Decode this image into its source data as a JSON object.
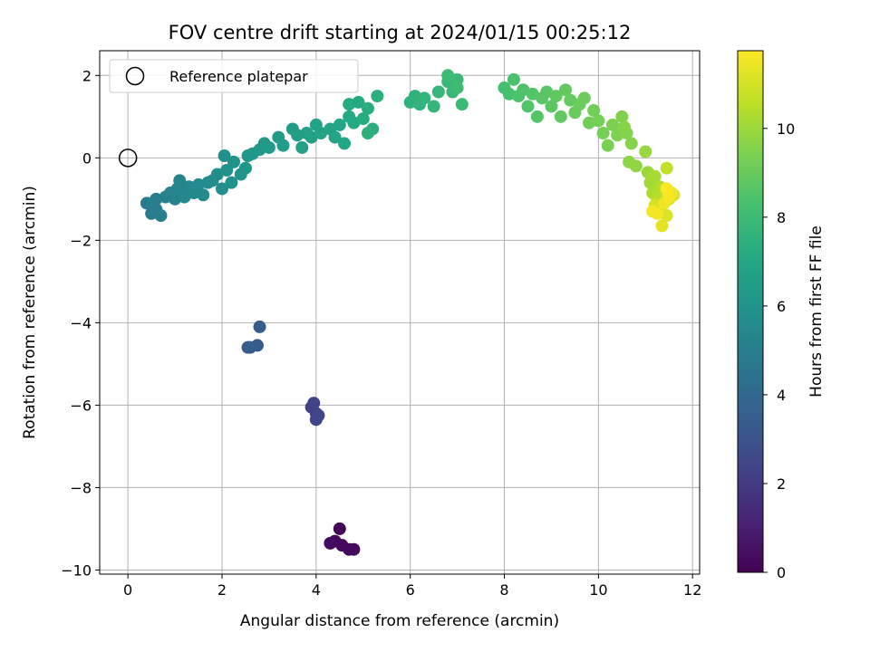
{
  "chart_data": {
    "type": "scatter",
    "title": "FOV centre drift starting at 2024/01/15 00:25:12",
    "xlabel": "Angular distance from reference (arcmin)",
    "ylabel": "Rotation from reference (arcmin)",
    "xlim": [
      -0.6,
      12.15
    ],
    "ylim": [
      -10.1,
      2.6
    ],
    "xticks": [
      0,
      2,
      4,
      6,
      8,
      10,
      12
    ],
    "yticks": [
      -10,
      -8,
      -6,
      -4,
      -2,
      0,
      2
    ],
    "xtick_labels": [
      "0",
      "2",
      "4",
      "6",
      "8",
      "10",
      "12"
    ],
    "ytick_labels": [
      "−10",
      "−8",
      "−6",
      "−4",
      "−2",
      "0",
      "2"
    ],
    "grid": true,
    "legend": {
      "position": "top-left",
      "entries": [
        "Reference platepar"
      ]
    },
    "reference_point": {
      "x": 0,
      "y": 0,
      "marker": "open-circle",
      "color": "#000000"
    },
    "colorbar": {
      "label": "Hours from first FF file",
      "colormap": "viridis",
      "range": [
        0,
        11.75
      ],
      "ticks": [
        0,
        2,
        4,
        6,
        8,
        10
      ],
      "tick_labels": [
        "0",
        "2",
        "4",
        "6",
        "8",
        "10"
      ]
    },
    "points": [
      [
        4.5,
        -9.0,
        0.1
      ],
      [
        4.4,
        -9.3,
        0.15
      ],
      [
        4.55,
        -9.4,
        0.2
      ],
      [
        4.7,
        -9.5,
        0.25
      ],
      [
        4.8,
        -9.5,
        0.3
      ],
      [
        4.3,
        -9.35,
        0.35
      ],
      [
        3.9,
        -6.05,
        2.2
      ],
      [
        4.0,
        -6.2,
        2.3
      ],
      [
        3.95,
        -5.95,
        2.35
      ],
      [
        4.0,
        -6.35,
        2.4
      ],
      [
        4.05,
        -6.25,
        2.45
      ],
      [
        2.55,
        -4.6,
        3.2
      ],
      [
        2.75,
        -4.55,
        3.3
      ],
      [
        2.8,
        -4.1,
        3.4
      ],
      [
        2.6,
        -4.6,
        3.5
      ],
      [
        0.4,
        -1.1,
        4.8
      ],
      [
        0.5,
        -1.35,
        4.85
      ],
      [
        0.6,
        -1.0,
        4.9
      ],
      [
        0.6,
        -1.25,
        4.95
      ],
      [
        0.7,
        -1.4,
        5.0
      ],
      [
        0.5,
        -1.15,
        5.05
      ],
      [
        0.8,
        -0.95,
        5.1
      ],
      [
        0.9,
        -0.85,
        5.15
      ],
      [
        1.0,
        -1.0,
        5.2
      ],
      [
        1.05,
        -0.75,
        5.25
      ],
      [
        1.1,
        -0.55,
        5.3
      ],
      [
        1.15,
        -0.85,
        5.35
      ],
      [
        1.2,
        -0.95,
        5.4
      ],
      [
        1.3,
        -0.7,
        5.45
      ],
      [
        1.4,
        -0.85,
        5.5
      ],
      [
        1.5,
        -0.65,
        5.55
      ],
      [
        1.6,
        -0.9,
        5.6
      ],
      [
        1.7,
        -0.6,
        5.65
      ],
      [
        1.8,
        -0.55,
        5.7
      ],
      [
        1.9,
        -0.4,
        5.75
      ],
      [
        2.0,
        -0.75,
        5.8
      ],
      [
        2.05,
        0.05,
        5.85
      ],
      [
        2.1,
        -0.3,
        5.9
      ],
      [
        2.2,
        -0.6,
        5.95
      ],
      [
        2.25,
        -0.1,
        6.0
      ],
      [
        2.4,
        -0.4,
        6.05
      ],
      [
        2.5,
        -0.25,
        6.1
      ],
      [
        2.55,
        0.05,
        6.15
      ],
      [
        2.65,
        0.1,
        6.2
      ],
      [
        2.8,
        0.2,
        6.25
      ],
      [
        2.9,
        0.35,
        6.3
      ],
      [
        3.0,
        0.25,
        6.35
      ],
      [
        3.2,
        0.5,
        6.4
      ],
      [
        3.3,
        0.3,
        6.45
      ],
      [
        3.5,
        0.7,
        6.5
      ],
      [
        3.6,
        0.55,
        6.55
      ],
      [
        3.7,
        0.25,
        6.6
      ],
      [
        3.8,
        0.6,
        6.65
      ],
      [
        3.9,
        0.5,
        6.7
      ],
      [
        4.0,
        0.8,
        6.75
      ],
      [
        4.1,
        0.6,
        6.8
      ],
      [
        4.3,
        0.7,
        6.85
      ],
      [
        4.4,
        0.5,
        6.9
      ],
      [
        4.5,
        0.8,
        6.95
      ],
      [
        4.6,
        0.35,
        7.0
      ],
      [
        4.7,
        1.0,
        7.05
      ],
      [
        4.8,
        0.85,
        7.1
      ],
      [
        4.7,
        1.3,
        7.15
      ],
      [
        4.9,
        1.35,
        7.2
      ],
      [
        5.0,
        0.95,
        7.25
      ],
      [
        5.1,
        1.2,
        7.3
      ],
      [
        5.2,
        0.7,
        7.35
      ],
      [
        5.3,
        1.5,
        7.4
      ],
      [
        5.1,
        0.6,
        7.45
      ],
      [
        6.0,
        1.35,
        7.5
      ],
      [
        6.1,
        1.5,
        7.55
      ],
      [
        6.2,
        1.3,
        7.6
      ],
      [
        6.3,
        1.45,
        7.65
      ],
      [
        6.5,
        1.25,
        7.7
      ],
      [
        6.6,
        1.6,
        7.75
      ],
      [
        6.8,
        1.85,
        7.8
      ],
      [
        6.9,
        1.6,
        7.85
      ],
      [
        7.0,
        1.9,
        7.9
      ],
      [
        7.1,
        1.3,
        7.95
      ],
      [
        6.8,
        2.0,
        8.0
      ],
      [
        7.0,
        1.7,
        8.05
      ],
      [
        8.0,
        1.7,
        8.25
      ],
      [
        8.1,
        1.55,
        8.3
      ],
      [
        8.2,
        1.9,
        8.35
      ],
      [
        8.3,
        1.5,
        8.4
      ],
      [
        8.4,
        1.65,
        8.45
      ],
      [
        8.5,
        1.25,
        8.5
      ],
      [
        8.6,
        1.55,
        8.55
      ],
      [
        8.7,
        1.0,
        8.6
      ],
      [
        8.8,
        1.45,
        8.65
      ],
      [
        8.9,
        1.6,
        8.7
      ],
      [
        9.0,
        1.25,
        8.75
      ],
      [
        9.1,
        1.5,
        8.8
      ],
      [
        9.2,
        1.0,
        8.85
      ],
      [
        9.3,
        1.65,
        8.9
      ],
      [
        9.4,
        1.4,
        8.95
      ],
      [
        9.5,
        1.1,
        9.0
      ],
      [
        9.6,
        1.3,
        9.05
      ],
      [
        9.7,
        1.45,
        9.1
      ],
      [
        9.8,
        0.85,
        9.15
      ],
      [
        9.9,
        1.15,
        9.2
      ],
      [
        10.0,
        0.9,
        9.25
      ],
      [
        10.1,
        0.6,
        9.3
      ],
      [
        10.2,
        0.3,
        9.35
      ],
      [
        10.3,
        0.8,
        9.4
      ],
      [
        10.4,
        0.55,
        9.45
      ],
      [
        10.5,
        1.0,
        9.5
      ],
      [
        10.6,
        0.6,
        9.55
      ],
      [
        10.7,
        0.35,
        9.6
      ],
      [
        10.55,
        0.75,
        9.65
      ],
      [
        10.65,
        -0.1,
        9.7
      ],
      [
        10.8,
        -0.2,
        9.8
      ],
      [
        11.0,
        0.15,
        9.9
      ],
      [
        11.05,
        -0.35,
        10.0
      ],
      [
        11.1,
        -0.6,
        10.1
      ],
      [
        11.2,
        -0.45,
        10.2
      ],
      [
        11.15,
        -0.85,
        10.3
      ],
      [
        11.3,
        -0.7,
        10.4
      ],
      [
        11.25,
        -1.0,
        10.5
      ],
      [
        11.4,
        -0.75,
        10.6
      ],
      [
        11.45,
        -0.25,
        10.7
      ],
      [
        11.3,
        -1.25,
        10.8
      ],
      [
        11.5,
        -1.0,
        10.9
      ],
      [
        11.2,
        -1.15,
        11.0
      ],
      [
        11.45,
        -1.4,
        11.1
      ],
      [
        11.6,
        -0.9,
        11.2
      ],
      [
        11.35,
        -1.65,
        11.3
      ],
      [
        11.55,
        -0.85,
        11.4
      ],
      [
        11.4,
        -1.1,
        11.5
      ],
      [
        11.25,
        -1.35,
        11.55
      ],
      [
        11.15,
        -1.3,
        11.6
      ],
      [
        11.5,
        -0.95,
        11.65
      ],
      [
        11.45,
        -0.75,
        11.7
      ]
    ]
  }
}
